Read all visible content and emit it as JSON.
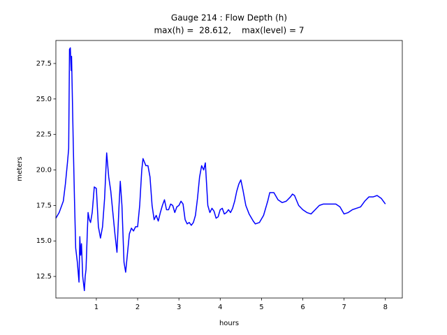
{
  "chart_data": {
    "type": "line",
    "title": "Gauge 214 : Flow Depth (h)",
    "subtitle": "max(h) =  28.612,    max(level) = 7",
    "x_label": "hours",
    "y_label": "meters",
    "color": "#0000ff",
    "x": [
      0.02,
      0.1,
      0.2,
      0.25,
      0.3,
      0.33,
      0.35,
      0.37,
      0.39,
      0.4,
      0.42,
      0.44,
      0.47,
      0.5,
      0.54,
      0.58,
      0.6,
      0.62,
      0.64,
      0.67,
      0.71,
      0.73,
      0.75,
      0.78,
      0.8,
      0.83,
      0.86,
      0.9,
      0.95,
      1.0,
      1.05,
      1.1,
      1.15,
      1.2,
      1.25,
      1.3,
      1.35,
      1.4,
      1.45,
      1.5,
      1.55,
      1.58,
      1.62,
      1.67,
      1.71,
      1.75,
      1.8,
      1.85,
      1.9,
      1.95,
      2.0,
      2.05,
      2.1,
      2.13,
      2.2,
      2.25,
      2.3,
      2.35,
      2.4,
      2.45,
      2.5,
      2.55,
      2.6,
      2.65,
      2.7,
      2.75,
      2.8,
      2.85,
      2.9,
      2.95,
      3.0,
      3.05,
      3.1,
      3.15,
      3.2,
      3.25,
      3.3,
      3.35,
      3.4,
      3.45,
      3.5,
      3.55,
      3.6,
      3.64,
      3.7,
      3.75,
      3.8,
      3.85,
      3.9,
      3.95,
      4.0,
      4.05,
      4.1,
      4.15,
      4.2,
      4.25,
      4.3,
      4.35,
      4.4,
      4.45,
      4.5,
      4.55,
      4.62,
      4.7,
      4.8,
      4.85,
      4.95,
      5.05,
      5.15,
      5.2,
      5.3,
      5.4,
      5.5,
      5.6,
      5.7,
      5.75,
      5.8,
      5.9,
      6.0,
      6.1,
      6.2,
      6.3,
      6.4,
      6.5,
      6.6,
      6.7,
      6.8,
      6.9,
      7.0,
      7.1,
      7.2,
      7.3,
      7.4,
      7.5,
      7.6,
      7.7,
      7.8,
      7.9,
      8.0
    ],
    "values": [
      16.6,
      17.0,
      17.8,
      19.0,
      20.5,
      21.5,
      28.5,
      28.6,
      27.0,
      28.0,
      25.0,
      22.0,
      18.0,
      14.5,
      13.5,
      12.1,
      15.3,
      14.0,
      14.8,
      12.5,
      11.5,
      12.5,
      13.0,
      15.5,
      17.0,
      16.5,
      16.3,
      17.0,
      18.8,
      18.7,
      16.0,
      15.2,
      16.0,
      18.0,
      21.2,
      19.5,
      18.5,
      17.0,
      15.5,
      14.2,
      17.5,
      19.2,
      17.5,
      13.5,
      12.8,
      14.0,
      15.5,
      15.9,
      15.7,
      16.0,
      16.0,
      17.5,
      20.0,
      20.8,
      20.3,
      20.3,
      19.5,
      17.5,
      16.5,
      16.8,
      16.4,
      17.0,
      17.5,
      17.9,
      17.2,
      17.2,
      17.6,
      17.5,
      17.0,
      17.4,
      17.5,
      17.8,
      17.6,
      16.5,
      16.2,
      16.3,
      16.1,
      16.3,
      16.8,
      18.0,
      19.5,
      20.3,
      20.0,
      20.5,
      17.5,
      17.0,
      17.3,
      17.1,
      16.6,
      16.7,
      17.2,
      17.3,
      16.9,
      17.0,
      17.2,
      17.0,
      17.3,
      17.8,
      18.5,
      19.0,
      19.3,
      18.6,
      17.5,
      16.9,
      16.4,
      16.2,
      16.3,
      16.8,
      17.8,
      18.4,
      18.4,
      17.9,
      17.7,
      17.8,
      18.1,
      18.3,
      18.2,
      17.5,
      17.2,
      17.0,
      16.9,
      17.2,
      17.5,
      17.6,
      17.6,
      17.6,
      17.6,
      17.4,
      16.9,
      17.0,
      17.2,
      17.3,
      17.4,
      17.8,
      18.1,
      18.1,
      18.2,
      18.0,
      17.6
    ],
    "xlim": [
      0.02,
      8.41
    ],
    "ylim": [
      10.98,
      29.12
    ],
    "xticks": [
      1,
      2,
      3,
      4,
      5,
      6,
      7,
      8
    ],
    "yticks": [
      12.5,
      {
        "value": 15,
        "label": "15.0"
      },
      17.5,
      {
        "value": 20,
        "label": "20.0"
      },
      22.5,
      {
        "value": 25,
        "label": "25.0"
      },
      27.5
    ]
  }
}
